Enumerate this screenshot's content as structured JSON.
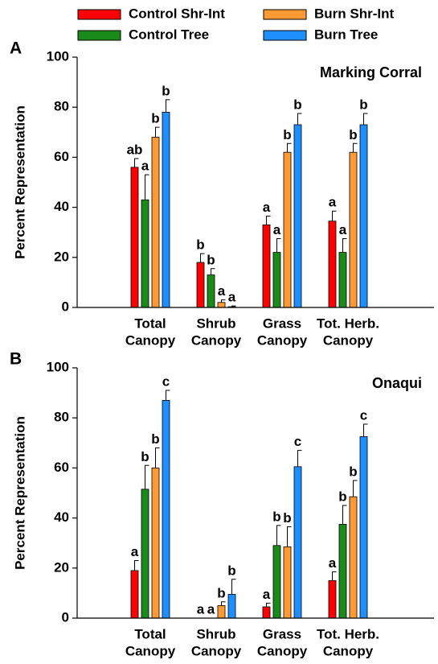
{
  "chart_data": [
    {
      "type": "bar",
      "panel_label": "A",
      "subtitle": "Marking Corral",
      "ylabel": "Percent Representation",
      "categories": [
        [
          "Total",
          "Canopy"
        ],
        [
          "Shrub",
          "Canopy"
        ],
        [
          "Grass",
          "Canopy"
        ],
        [
          "Tot. Herb.",
          "Canopy"
        ]
      ],
      "ylim": [
        0,
        100
      ],
      "yticks": [
        0,
        20,
        40,
        60,
        80,
        100
      ],
      "series": [
        {
          "name": "Control Shr-Int",
          "color": "#ff0000",
          "values": [
            56,
            18,
            33,
            34.5
          ],
          "errors": [
            3.5,
            3.5,
            3.5,
            4
          ],
          "letters": [
            "ab",
            "b",
            "a",
            "a"
          ]
        },
        {
          "name": "Control Tree",
          "color": "#1a8a1a",
          "values": [
            43,
            13,
            22,
            22
          ],
          "errors": [
            10,
            2.5,
            5.5,
            5.5
          ],
          "letters": [
            "a",
            "b",
            "a",
            "a"
          ]
        },
        {
          "name": "Burn Shr-Int",
          "color": "#ff9933",
          "values": [
            68,
            2,
            62,
            62
          ],
          "errors": [
            4,
            1,
            3.5,
            3.5
          ],
          "letters": [
            "b",
            "a",
            "b",
            "b"
          ]
        },
        {
          "name": "Burn Tree",
          "color": "#1f8fff",
          "values": [
            78,
            0.3,
            73,
            73
          ],
          "errors": [
            5,
            0.3,
            4.5,
            4.5
          ],
          "letters": [
            "b",
            "a",
            "b",
            "b"
          ]
        }
      ]
    },
    {
      "type": "bar",
      "panel_label": "B",
      "subtitle": "Onaqui",
      "ylabel": "Percent Representation",
      "categories": [
        [
          "Total",
          "Canopy"
        ],
        [
          "Shrub",
          "Canopy"
        ],
        [
          "Grass",
          "Canopy"
        ],
        [
          "Tot. Herb.",
          "Canopy"
        ]
      ],
      "ylim": [
        0,
        100
      ],
      "yticks": [
        0,
        20,
        40,
        60,
        80,
        100
      ],
      "series": [
        {
          "color": "#ff0000",
          "values": [
            19,
            0,
            4.5,
            15
          ],
          "errors": [
            4,
            0,
            1.5,
            3.5
          ],
          "letters": [
            "a",
            "a",
            "a",
            "a"
          ]
        },
        {
          "color": "#1a8a1a",
          "values": [
            51.5,
            0,
            29,
            37.5
          ],
          "errors": [
            9.5,
            0,
            8,
            7.5
          ],
          "letters": [
            "b",
            "a",
            "b",
            "b"
          ]
        },
        {
          "color": "#ff9933",
          "values": [
            60,
            5,
            28.5,
            48.5
          ],
          "errors": [
            8,
            1.5,
            8,
            6.5
          ],
          "letters": [
            "b",
            "b",
            "b",
            "b"
          ]
        },
        {
          "color": "#1f8fff",
          "values": [
            87,
            9.5,
            60.5,
            72.5
          ],
          "errors": [
            4,
            6,
            6.5,
            5
          ],
          "letters": [
            "c",
            "b",
            "c",
            "c"
          ]
        }
      ]
    }
  ]
}
